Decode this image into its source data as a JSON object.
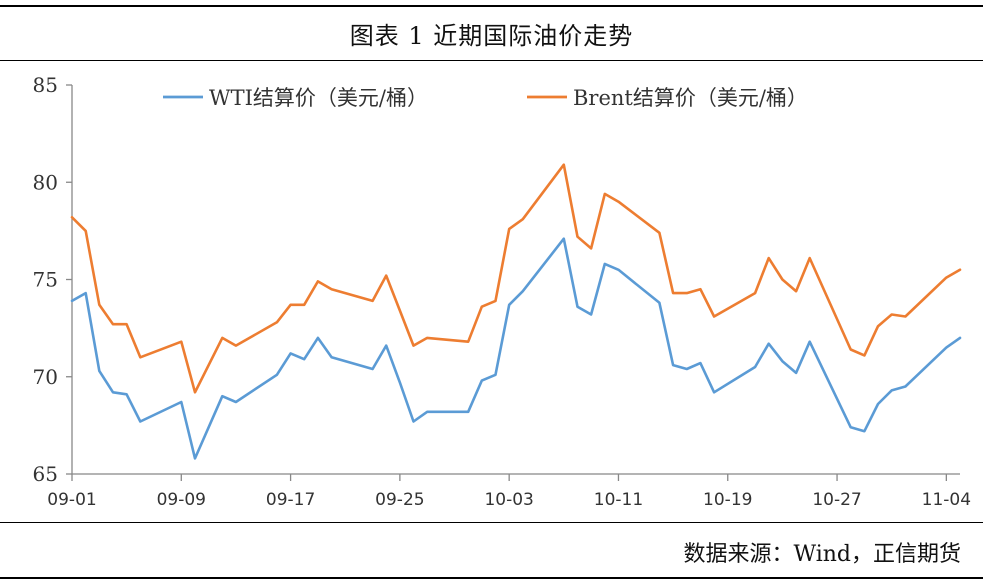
{
  "header": {
    "title": "图表 1    近期国际油价走势"
  },
  "footer": {
    "source": "数据来源：Wind，正信期货"
  },
  "colors": {
    "wti": "#5B9BD5",
    "brent": "#ED7D31",
    "axis": "#888888"
  },
  "chart_data": {
    "type": "line",
    "title": "",
    "xlabel": "",
    "ylabel": "",
    "ylim": [
      65,
      85
    ],
    "yticks": [
      65,
      70,
      75,
      80,
      85
    ],
    "grid": false,
    "legend": "top",
    "x_tick_labels": [
      "09-01",
      "09-09",
      "09-17",
      "09-25",
      "10-03",
      "10-11",
      "10-19",
      "10-27",
      "11-04"
    ],
    "x": [
      "09-01",
      "09-02",
      "09-03",
      "09-04",
      "09-05",
      "09-06",
      "09-07",
      "09-08",
      "09-09",
      "09-10",
      "09-11",
      "09-12",
      "09-13",
      "09-14",
      "09-15",
      "09-16",
      "09-17",
      "09-18",
      "09-19",
      "09-20",
      "09-21",
      "09-22",
      "09-23",
      "09-24",
      "09-25",
      "09-26",
      "09-27",
      "09-28",
      "09-29",
      "09-30",
      "10-01",
      "10-02",
      "10-03",
      "10-04",
      "10-05",
      "10-06",
      "10-07",
      "10-08",
      "10-09",
      "10-10",
      "10-11",
      "10-12",
      "10-13",
      "10-14",
      "10-15",
      "10-16",
      "10-17",
      "10-18",
      "10-19",
      "10-20",
      "10-21",
      "10-22",
      "10-23",
      "10-24",
      "10-25",
      "10-26",
      "10-27",
      "10-28",
      "10-29",
      "10-30",
      "10-31",
      "11-01",
      "11-02",
      "11-03",
      "11-04",
      "11-05"
    ],
    "series": [
      {
        "name": "WTI结算价（美元/桶）",
        "values": [
          73.9,
          74.3,
          70.3,
          69.2,
          69.1,
          67.7,
          null,
          null,
          68.7,
          65.8,
          null,
          69.0,
          68.7,
          null,
          null,
          70.1,
          71.2,
          70.9,
          72.0,
          71.0,
          null,
          null,
          70.4,
          71.6,
          69.7,
          67.7,
          68.2,
          null,
          null,
          68.2,
          69.8,
          70.1,
          73.7,
          74.4,
          null,
          null,
          77.1,
          73.6,
          73.2,
          75.8,
          75.5,
          null,
          null,
          73.8,
          70.6,
          70.4,
          70.7,
          69.2,
          null,
          null,
          70.5,
          71.7,
          70.8,
          70.2,
          71.8,
          null,
          null,
          67.4,
          67.2,
          68.6,
          69.3,
          69.5,
          null,
          null,
          71.5,
          72.0
        ]
      },
      {
        "name": "Brent结算价（美元/桶）",
        "values": [
          78.2,
          77.5,
          73.7,
          72.7,
          72.7,
          71.0,
          null,
          null,
          71.8,
          69.2,
          null,
          72.0,
          71.6,
          null,
          null,
          72.8,
          73.7,
          73.7,
          74.9,
          74.5,
          null,
          null,
          73.9,
          75.2,
          73.4,
          71.6,
          72.0,
          null,
          null,
          71.8,
          73.6,
          73.9,
          77.6,
          78.1,
          null,
          null,
          80.9,
          77.2,
          76.6,
          79.4,
          79.0,
          null,
          null,
          77.4,
          74.3,
          74.3,
          74.5,
          73.1,
          null,
          null,
          74.3,
          76.1,
          75.0,
          74.4,
          76.1,
          null,
          null,
          71.4,
          71.1,
          72.6,
          73.2,
          73.1,
          null,
          null,
          75.1,
          75.5
        ]
      }
    ]
  }
}
